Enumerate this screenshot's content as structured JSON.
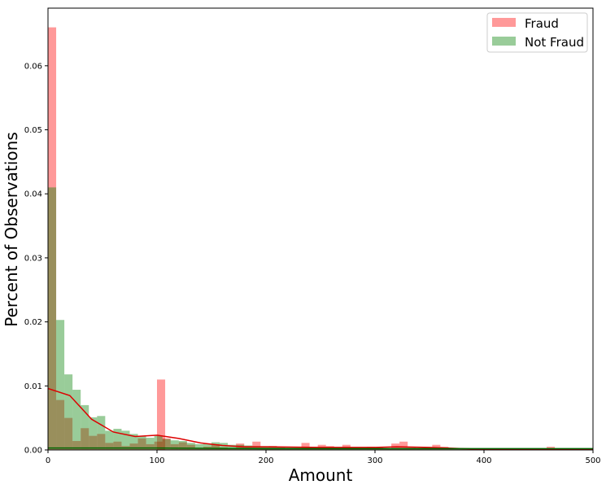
{
  "chart_data": {
    "type": "bar",
    "xlabel": "Amount",
    "ylabel": "Percent of Observations",
    "xlim": [
      0,
      500
    ],
    "ylim": [
      0,
      0.069
    ],
    "xticks": [
      0,
      100,
      200,
      300,
      400,
      500
    ],
    "yticks": [
      0.0,
      0.01,
      0.02,
      0.03,
      0.04,
      0.05,
      0.06
    ],
    "ytick_labels": [
      "0.00",
      "0.01",
      "0.02",
      "0.03",
      "0.04",
      "0.05",
      "0.06"
    ],
    "legend_position": "top-right",
    "grid": false,
    "series": [
      {
        "name": "Fraud",
        "color": "#ff0000",
        "alpha": 0.4,
        "bin_width": 7.5,
        "bins": [
          [
            0,
            0.066
          ],
          [
            7.5,
            0.0078
          ],
          [
            15,
            0.005
          ],
          [
            22.5,
            0.0014
          ],
          [
            30,
            0.0034
          ],
          [
            37.5,
            0.0022
          ],
          [
            45,
            0.0025
          ],
          [
            52.5,
            0.0011
          ],
          [
            60,
            0.0013
          ],
          [
            67.5,
            0.0006
          ],
          [
            75,
            0.001
          ],
          [
            82.5,
            0.0018
          ],
          [
            90,
            0.0009
          ],
          [
            97.5,
            0.0013
          ],
          [
            100,
            0.011
          ],
          [
            105,
            0.0018
          ],
          [
            112.5,
            0.0009
          ],
          [
            120,
            0.0012
          ],
          [
            127.5,
            0.0008
          ],
          [
            135,
            0.0002
          ],
          [
            142.5,
            0.0005
          ],
          [
            150,
            0.0009
          ],
          [
            157.5,
            0.0004
          ],
          [
            165,
            0.0002
          ],
          [
            172.5,
            0.001
          ],
          [
            180,
            0.0006
          ],
          [
            187.5,
            0.0013
          ],
          [
            195,
            0.0004
          ],
          [
            202.5,
            0.0006
          ],
          [
            210,
            0.0004
          ],
          [
            217.5,
            0.0003
          ],
          [
            225,
            0.0003
          ],
          [
            232.5,
            0.0011
          ],
          [
            240,
            0.0004
          ],
          [
            247.5,
            0.0008
          ],
          [
            255,
            0.0006
          ],
          [
            262.5,
            0.0003
          ],
          [
            270,
            0.0008
          ],
          [
            277.5,
            0.0003
          ],
          [
            285,
            0.0004
          ],
          [
            292.5,
            0.0005
          ],
          [
            300,
            0.0004
          ],
          [
            307.5,
            0.0003
          ],
          [
            315,
            0.001
          ],
          [
            322.5,
            0.0013
          ],
          [
            330,
            0.0004
          ],
          [
            337.5,
            0.0003
          ],
          [
            345,
            0.0004
          ],
          [
            352.5,
            0.0008
          ],
          [
            360,
            0.0005
          ],
          [
            367.5,
            0.0002
          ],
          [
            375,
            0.0002
          ],
          [
            382.5,
            0.0001
          ],
          [
            390,
            0.0001
          ],
          [
            397.5,
            0.0001
          ],
          [
            405,
            0.0001
          ],
          [
            412.5,
            0.0001
          ],
          [
            420,
            0.0001
          ],
          [
            427.5,
            0.0001
          ],
          [
            435,
            0.0001
          ],
          [
            442.5,
            0.0001
          ],
          [
            450,
            0.0002
          ],
          [
            457.5,
            0.0005
          ],
          [
            465,
            0.0001
          ],
          [
            472.5,
            0.0001
          ],
          [
            480,
            0.0001
          ],
          [
            487.5,
            0.0001
          ],
          [
            495,
            0.0001
          ]
        ],
        "kde": {
          "color": "#dd0000",
          "x": [
            0,
            20,
            40,
            60,
            80,
            100,
            120,
            140,
            160,
            180,
            200,
            250,
            300,
            320,
            350,
            380,
            400,
            450,
            500
          ],
          "y": [
            0.0096,
            0.0085,
            0.0048,
            0.0028,
            0.0021,
            0.0023,
            0.0018,
            0.0011,
            0.0007,
            0.0005,
            0.0005,
            0.0004,
            0.0004,
            0.0005,
            0.0004,
            0.0002,
            0.0001,
            0.0001,
            0.0001
          ]
        }
      },
      {
        "name": "Not Fraud",
        "color": "#008000",
        "alpha": 0.4,
        "bin_width": 7.5,
        "bins": [
          [
            0,
            0.041
          ],
          [
            7.5,
            0.0203
          ],
          [
            15,
            0.0118
          ],
          [
            22.5,
            0.0094
          ],
          [
            30,
            0.007
          ],
          [
            37.5,
            0.0051
          ],
          [
            45,
            0.0053
          ],
          [
            52.5,
            0.003
          ],
          [
            60,
            0.0033
          ],
          [
            67.5,
            0.003
          ],
          [
            75,
            0.0025
          ],
          [
            82.5,
            0.0021
          ],
          [
            90,
            0.0019
          ],
          [
            97.5,
            0.0022
          ],
          [
            105,
            0.0017
          ],
          [
            112.5,
            0.0015
          ],
          [
            120,
            0.0014
          ],
          [
            127.5,
            0.0011
          ],
          [
            135,
            0.0009
          ],
          [
            142.5,
            0.001
          ],
          [
            150,
            0.0012
          ],
          [
            157.5,
            0.0011
          ],
          [
            165,
            0.0008
          ],
          [
            172.5,
            0.0008
          ],
          [
            180,
            0.0007
          ],
          [
            187.5,
            0.0006
          ],
          [
            195,
            0.0006
          ],
          [
            202.5,
            0.0006
          ],
          [
            210,
            0.0005
          ],
          [
            217.5,
            0.0005
          ],
          [
            225,
            0.0005
          ],
          [
            232.5,
            0.0005
          ],
          [
            240,
            0.0004
          ],
          [
            247.5,
            0.0004
          ],
          [
            255,
            0.0004
          ],
          [
            262.5,
            0.0004
          ],
          [
            270,
            0.0004
          ],
          [
            277.5,
            0.0004
          ],
          [
            285,
            0.0003
          ],
          [
            292.5,
            0.0003
          ],
          [
            300,
            0.0003
          ],
          [
            307.5,
            0.0003
          ],
          [
            315,
            0.0003
          ],
          [
            322.5,
            0.0003
          ],
          [
            330,
            0.0003
          ],
          [
            337.5,
            0.0003
          ],
          [
            345,
            0.0003
          ],
          [
            352.5,
            0.0002
          ],
          [
            360,
            0.0002
          ],
          [
            367.5,
            0.0002
          ],
          [
            375,
            0.0002
          ],
          [
            382.5,
            0.0002
          ],
          [
            390,
            0.0002
          ],
          [
            397.5,
            0.0002
          ],
          [
            405,
            0.0002
          ],
          [
            412.5,
            0.0002
          ],
          [
            420,
            0.0002
          ],
          [
            427.5,
            0.0002
          ],
          [
            435,
            0.0002
          ],
          [
            442.5,
            0.0002
          ],
          [
            450,
            0.0002
          ],
          [
            457.5,
            0.0002
          ],
          [
            465,
            0.0002
          ],
          [
            472.5,
            0.0002
          ],
          [
            480,
            0.0002
          ],
          [
            487.5,
            0.0002
          ],
          [
            495,
            0.0002
          ]
        ],
        "kde": {
          "color": "#006400",
          "x": [
            0,
            100,
            200,
            300,
            400,
            500
          ],
          "y": [
            0.0003,
            0.0003,
            0.0002,
            0.0002,
            0.0002,
            0.0002
          ]
        }
      }
    ]
  }
}
